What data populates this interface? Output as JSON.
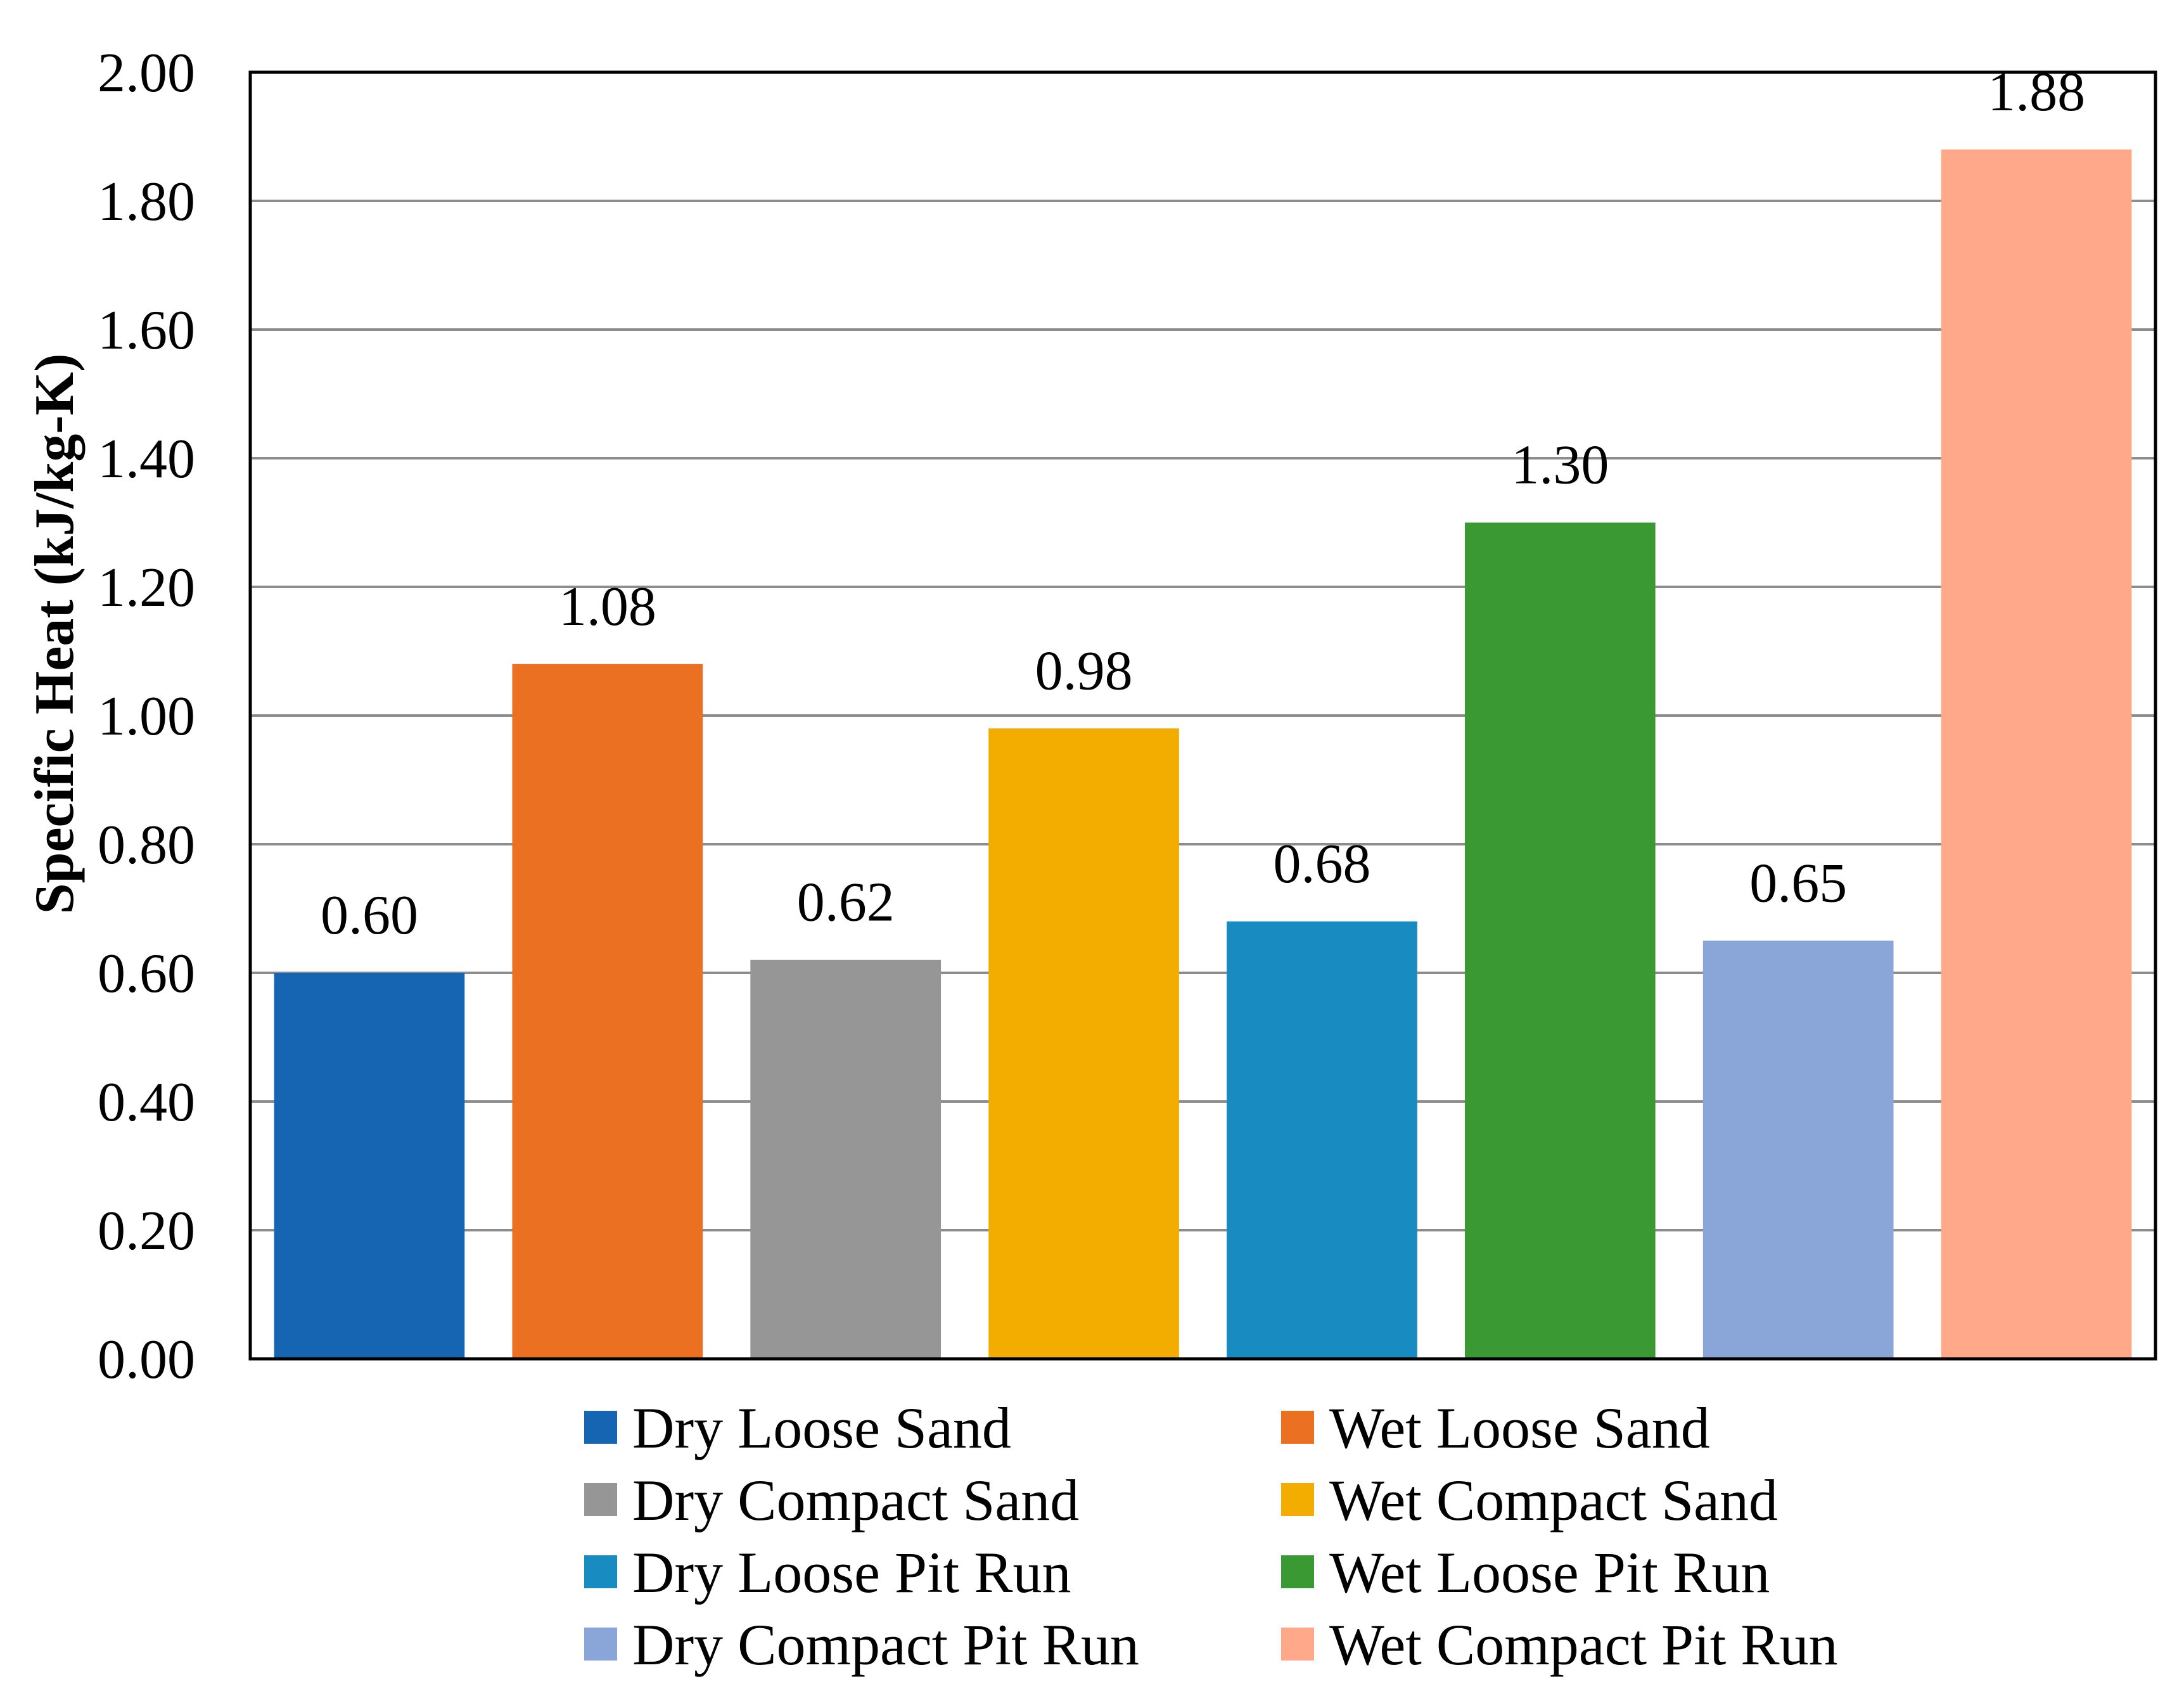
{
  "chart_data": {
    "type": "bar",
    "title": "",
    "xlabel": "",
    "ylabel": "Specific Heat (kJ/kg-K)",
    "ylim": [
      0,
      2.0
    ],
    "yticks": [
      "0.00",
      "0.20",
      "0.40",
      "0.60",
      "0.80",
      "1.00",
      "1.20",
      "1.40",
      "1.60",
      "1.80",
      "2.00"
    ],
    "grid": true,
    "legend_position": "bottom",
    "series": [
      {
        "name": "Dry Loose Sand",
        "value": 0.6,
        "label": "0.60",
        "color": "#1565B2"
      },
      {
        "name": "Wet Loose Sand",
        "value": 1.08,
        "label": "1.08",
        "color": "#EC7022"
      },
      {
        "name": "Dry Compact Sand",
        "value": 0.62,
        "label": "0.62",
        "color": "#969696"
      },
      {
        "name": "Wet Compact Sand",
        "value": 0.98,
        "label": "0.98",
        "color": "#F2AD00"
      },
      {
        "name": "Dry Loose Pit Run",
        "value": 0.68,
        "label": "0.68",
        "color": "#188BC1"
      },
      {
        "name": "Wet Loose Pit Run",
        "value": 1.3,
        "label": "1.30",
        "color": "#3A9933"
      },
      {
        "name": "Dry Compact Pit Run",
        "value": 0.65,
        "label": "0.65",
        "color": "#8AA6D8"
      },
      {
        "name": "Wet Compact Pit Run",
        "value": 1.88,
        "label": "1.88",
        "color": "#FFA98A"
      }
    ]
  }
}
